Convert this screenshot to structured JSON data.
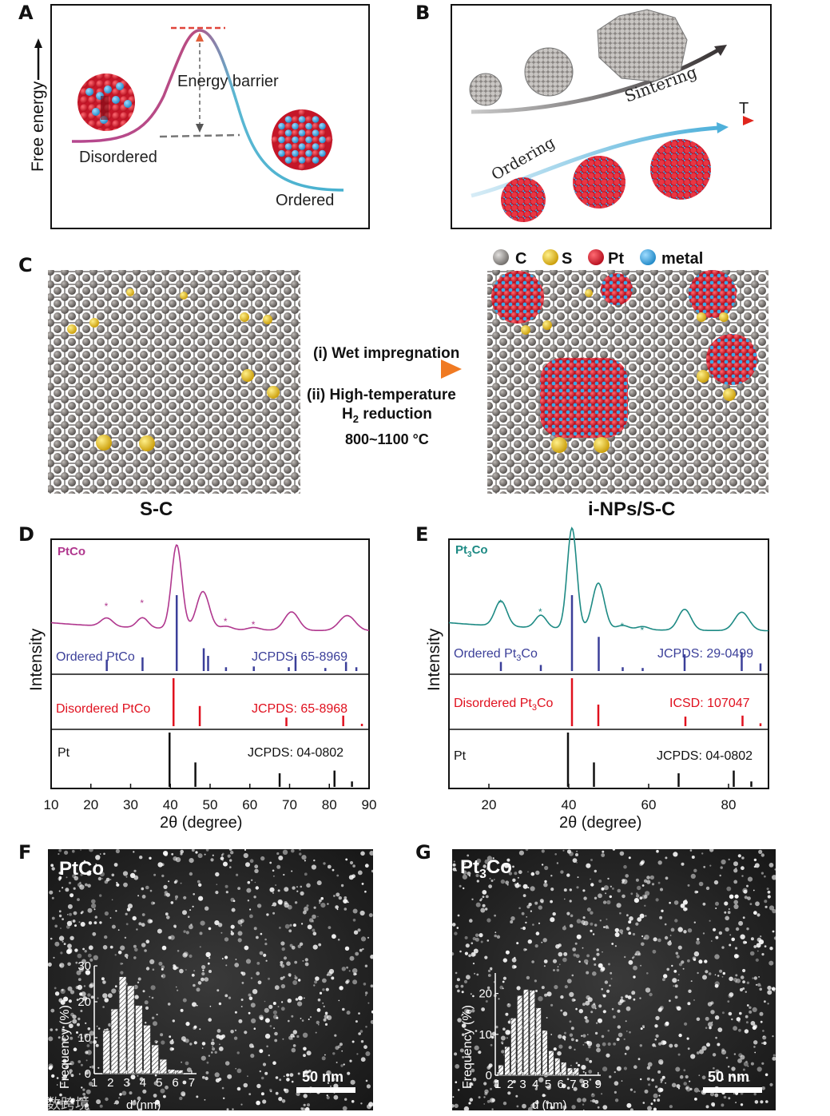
{
  "panels": {
    "A": {
      "letter": "A",
      "y_label": "Free energy",
      "barrier_label": "Energy barrier",
      "state_left": "Disordered",
      "state_right": "Ordered"
    },
    "B": {
      "letter": "B",
      "sintering_label": "Sintering",
      "temperature_label": "T",
      "ordering_label": "Ordering"
    },
    "C": {
      "letter": "C",
      "legend": [
        {
          "label": "C",
          "color": "#7d7875"
        },
        {
          "label": "S",
          "color": "#e8c21a"
        },
        {
          "label": "Pt",
          "color": "#d91e2b"
        },
        {
          "label": "metal",
          "color": "#39a9e0"
        }
      ],
      "step1": "(i) Wet impregnation",
      "step2_line1": "(ii) High-temperature",
      "step2_line2_main": "H",
      "step2_line2_sub": "2",
      "step2_line2_rest": " reduction",
      "step_temp": "800~1100 °C",
      "left_caption": "S-C",
      "right_caption": "i-NPs/S-C"
    },
    "D": {
      "letter": "D",
      "sample": "PtCo",
      "ref1_name": "Ordered PtCo",
      "ref1_card": "JCPDS: 65-8969",
      "ref2_name": "Disordered PtCo",
      "ref2_card": "JCPDS: 65-8968",
      "ref3_name": "Pt",
      "ref3_card": "JCPDS: 04-0802",
      "y_label": "Intensity",
      "x_label": "2θ (degree)",
      "x_ticks": [
        "10",
        "20",
        "30",
        "40",
        "50",
        "60",
        "70",
        "80",
        "90"
      ]
    },
    "E": {
      "letter": "E",
      "sample_main": "Pt",
      "sample_sub": "3",
      "sample_rest": "Co",
      "ref1_name_a": "Ordered Pt",
      "ref1_name_sub": "3",
      "ref1_name_b": "Co",
      "ref1_card": "JCPDS: 29-0499",
      "ref2_name_a": "Disordered Pt",
      "ref2_name_sub": "3",
      "ref2_name_b": "Co",
      "ref2_card": "ICSD: 107047",
      "ref3_name": "Pt",
      "ref3_card": "JCPDS: 04-0802",
      "y_label": "Intensity",
      "x_label": "2θ (degree)",
      "x_ticks": [
        "20",
        "40",
        "60",
        "80"
      ]
    },
    "F": {
      "letter": "F",
      "sample": "PtCo",
      "scale_bar": "50 nm",
      "hist_ylabel": "Frequency (%)",
      "hist_xlabel": "d (nm)",
      "hist_yticks": [
        "0",
        "10",
        "20",
        "30"
      ],
      "hist_xticks": [
        "1",
        "2",
        "3",
        "4",
        "5",
        "6",
        "7"
      ]
    },
    "G": {
      "letter": "G",
      "sample_main": "Pt",
      "sample_sub": "3",
      "sample_rest": "Co",
      "scale_bar": "50 nm",
      "hist_ylabel": "Frequency (%)",
      "hist_xlabel": "d (nm)",
      "hist_yticks": [
        "0",
        "10",
        "20"
      ],
      "hist_xticks": [
        "1",
        "2",
        "3",
        "4",
        "5",
        "6",
        "7",
        "8",
        "9"
      ]
    }
  },
  "watermark": "大数跨境",
  "chart_data": [
    {
      "id": "D-references",
      "type": "bar",
      "title": "PtCo",
      "xlabel": "2θ (degree)",
      "ylabel": "Intensity",
      "xlim": [
        10,
        90
      ],
      "series": [
        {
          "name": "Ordered PtCo",
          "color": "#3b3f99",
          "x": [
            24.0,
            33.0,
            41.6,
            48.4,
            49.5,
            54.0,
            61.0,
            69.8,
            71.5,
            79.0,
            84.2,
            86.8
          ],
          "values": [
            0.15,
            0.18,
            1.0,
            0.3,
            0.2,
            0.05,
            0.06,
            0.05,
            0.2,
            0.04,
            0.12,
            0.05
          ]
        },
        {
          "name": "Disordered PtCo",
          "color": "#e0101e",
          "x": [
            40.8,
            47.4,
            69.2,
            83.5,
            88.2
          ],
          "values": [
            1.0,
            0.42,
            0.18,
            0.22,
            0.05
          ]
        },
        {
          "name": "Pt",
          "color": "#111111",
          "x": [
            39.8,
            46.3,
            67.5,
            81.3,
            85.7
          ],
          "values": [
            1.0,
            0.45,
            0.25,
            0.3,
            0.1
          ]
        }
      ]
    },
    {
      "id": "E-references",
      "type": "bar",
      "title": "Pt3Co",
      "xlabel": "2θ (degree)",
      "ylabel": "Intensity",
      "xlim": [
        10,
        90
      ],
      "series": [
        {
          "name": "Ordered Pt3Co",
          "color": "#3b3f99",
          "x": [
            23.0,
            33.0,
            40.8,
            47.5,
            53.5,
            58.5,
            69.0,
            83.3,
            88.0
          ],
          "values": [
            0.12,
            0.08,
            1.0,
            0.45,
            0.05,
            0.04,
            0.22,
            0.25,
            0.1
          ]
        },
        {
          "name": "Disordered Pt3Co",
          "color": "#e0101e",
          "x": [
            40.8,
            47.4,
            69.2,
            83.5,
            88.0
          ],
          "values": [
            1.0,
            0.45,
            0.2,
            0.22,
            0.06
          ]
        },
        {
          "name": "Pt",
          "color": "#111111",
          "x": [
            39.8,
            46.3,
            67.5,
            81.3,
            85.7
          ],
          "values": [
            1.0,
            0.45,
            0.25,
            0.3,
            0.1
          ]
        }
      ]
    },
    {
      "id": "F-hist",
      "type": "bar",
      "title": "PtCo",
      "xlabel": "d (nm)",
      "ylabel": "Frequency (%)",
      "ylim": [
        0,
        30
      ],
      "bin_width": 0.5,
      "x": [
        1.75,
        2.25,
        2.75,
        3.25,
        3.75,
        4.25,
        4.75,
        5.25,
        5.75,
        6.25,
        6.75
      ],
      "values": [
        12,
        18,
        27,
        24.5,
        19,
        13.5,
        8,
        4,
        1.2,
        1.0,
        0
      ]
    },
    {
      "id": "G-hist",
      "type": "bar",
      "title": "Pt3Co",
      "xlabel": "d (nm)",
      "ylabel": "Frequency (%)",
      "ylim": [
        0,
        25
      ],
      "bin_width": 0.5,
      "x": [
        1.25,
        1.75,
        2.25,
        2.75,
        3.25,
        3.75,
        4.25,
        4.75,
        5.25,
        5.75,
        6.25,
        6.75,
        7.25,
        7.75
      ],
      "values": [
        2.5,
        7,
        14,
        19.5,
        21,
        20.8,
        16.5,
        11,
        6,
        4.2,
        3.2,
        1.8,
        1.8,
        0
      ]
    }
  ]
}
